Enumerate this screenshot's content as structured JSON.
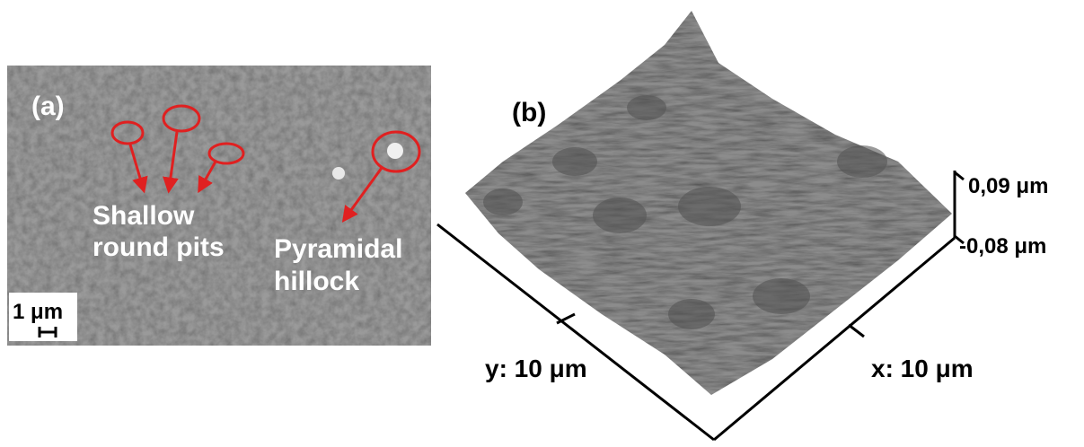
{
  "panel_a": {
    "label": "(a)",
    "pits_annotation": [
      "Shallow",
      "round pits"
    ],
    "hillock_annotation": [
      "Pyramidal",
      "hillock"
    ],
    "scale_bar": "1 μm"
  },
  "panel_b": {
    "label": "(b)",
    "z_max": "0,09 μm",
    "z_min": "-0,08 μm",
    "y_axis": "y: 10 μm",
    "x_axis": "x: 10 μm"
  }
}
